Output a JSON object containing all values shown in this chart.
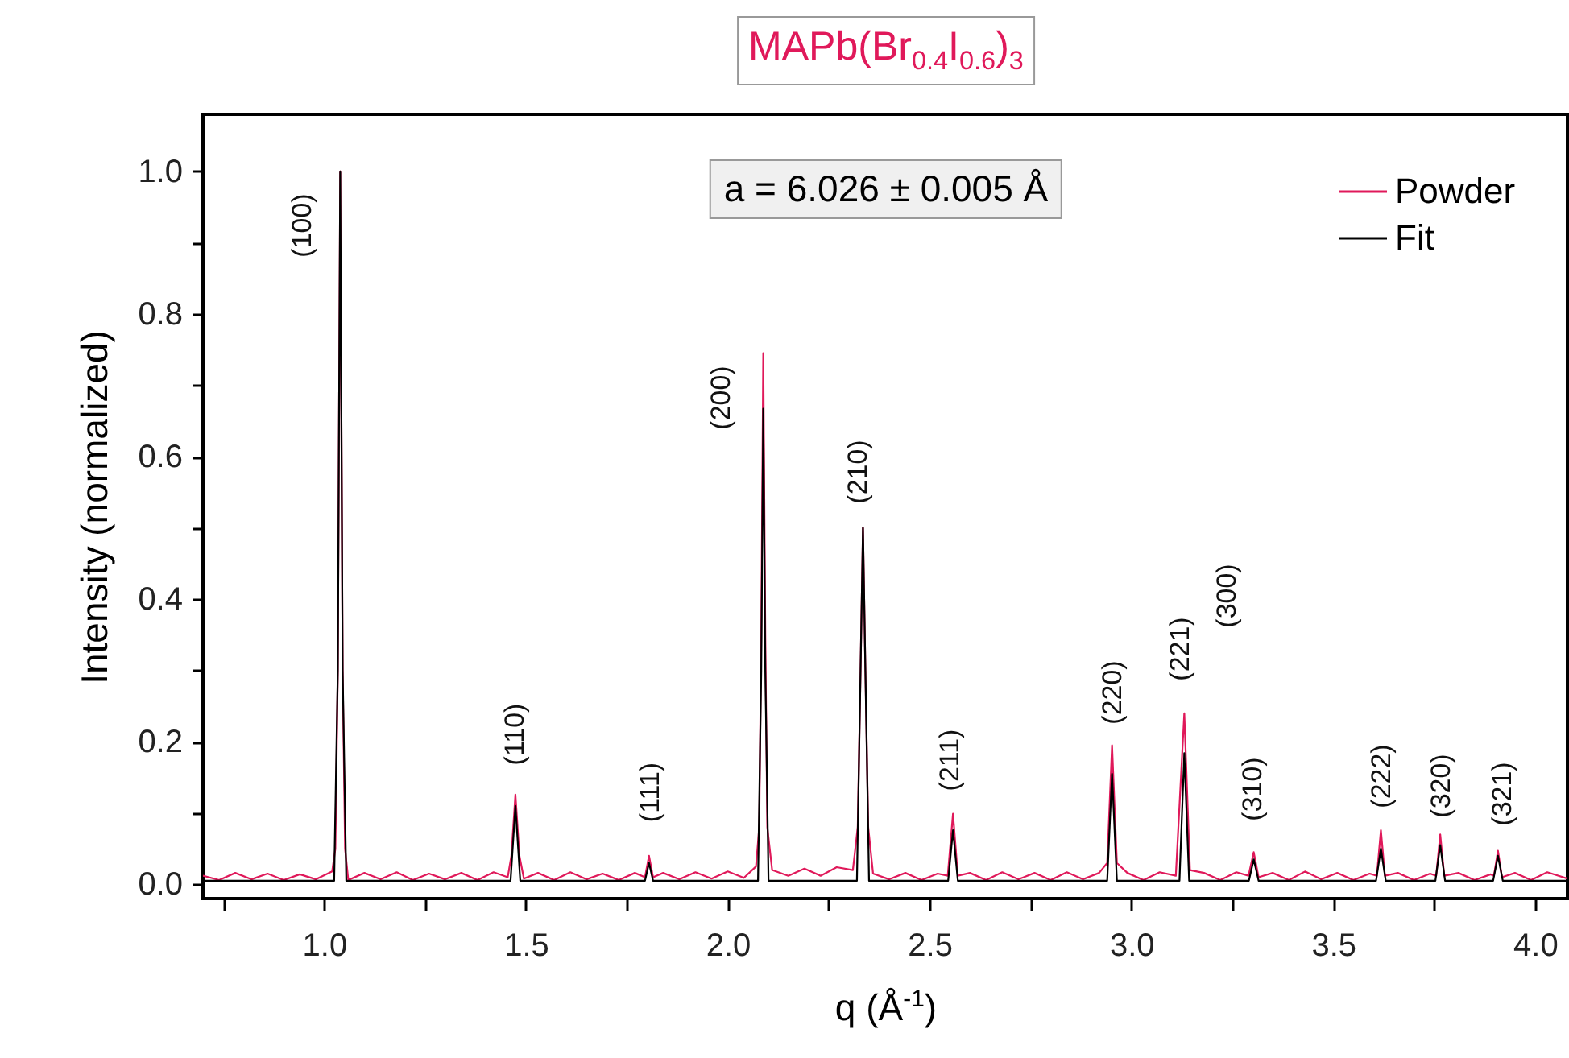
{
  "chart_data": {
    "type": "line",
    "title": "MAPb(Br$_{0.4}$I$_{0.6}$)$_{3}$",
    "xlabel": "q (Å$^{-1}$)",
    "ylabel": "Intensity (normalized)",
    "legend": "top right",
    "xlim": [
      0.7,
      4.08
    ],
    "ylim": [
      -0.02,
      1.08
    ],
    "xticks": [
      {
        "value": 0.75,
        "label": null
      },
      {
        "value": 1,
        "label": "1.0"
      },
      {
        "value": 1.25,
        "label": null
      },
      {
        "value": 1.5,
        "label": "1.5"
      },
      {
        "value": 1.75,
        "label": null
      },
      {
        "value": 2,
        "label": "2.0"
      },
      {
        "value": 2.25,
        "label": null
      },
      {
        "value": 2.5,
        "label": "2.5"
      },
      {
        "value": 2.75,
        "label": null
      },
      {
        "value": 3,
        "label": "3.0"
      },
      {
        "value": 3.25,
        "label": null
      },
      {
        "value": 3.5,
        "label": "3.5"
      },
      {
        "value": 3.75,
        "label": null
      },
      {
        "value": 4,
        "label": "4.0"
      }
    ],
    "yticks": [
      {
        "value": 0,
        "label": "0.0"
      },
      {
        "value": 0.1,
        "label": null
      },
      {
        "value": 0.2,
        "label": "0.2"
      },
      {
        "value": 0.3,
        "label": null
      },
      {
        "value": 0.4,
        "label": "0.4"
      },
      {
        "value": 0.5,
        "label": null
      },
      {
        "value": 0.6,
        "label": "0.6"
      },
      {
        "value": 0.7,
        "label": null
      },
      {
        "value": 0.8,
        "label": "0.8"
      },
      {
        "value": 0.9,
        "label": null
      },
      {
        "value": 1,
        "label": "1.0"
      }
    ],
    "series": [
      {
        "name": "Powder",
        "color": "#e0195a",
        "x": [
          0.7,
          0.74,
          0.78,
          0.82,
          0.86,
          0.9,
          0.94,
          0.98,
          1.02,
          1.028,
          1.034,
          1.04,
          1.046,
          1.052,
          1.06,
          1.1,
          1.14,
          1.18,
          1.22,
          1.26,
          1.3,
          1.34,
          1.38,
          1.42,
          1.455,
          1.464,
          1.474,
          1.484,
          1.495,
          1.53,
          1.57,
          1.61,
          1.65,
          1.69,
          1.73,
          1.77,
          1.795,
          1.805,
          1.815,
          1.84,
          1.88,
          1.92,
          1.96,
          2.0,
          2.04,
          2.07,
          2.078,
          2.083,
          2.088,
          2.093,
          2.098,
          2.11,
          2.15,
          2.19,
          2.23,
          2.27,
          2.31,
          2.322,
          2.329,
          2.335,
          2.341,
          2.348,
          2.36,
          2.4,
          2.44,
          2.48,
          2.52,
          2.545,
          2.558,
          2.57,
          2.6,
          2.64,
          2.68,
          2.72,
          2.76,
          2.8,
          2.84,
          2.88,
          2.92,
          2.94,
          2.952,
          2.964,
          2.99,
          3.03,
          3.07,
          3.11,
          3.131,
          3.145,
          3.18,
          3.22,
          3.26,
          3.29,
          3.303,
          3.315,
          3.35,
          3.39,
          3.43,
          3.47,
          3.51,
          3.55,
          3.59,
          3.608,
          3.618,
          3.628,
          3.66,
          3.7,
          3.74,
          3.755,
          3.765,
          3.775,
          3.81,
          3.85,
          3.89,
          3.898,
          3.908,
          3.918,
          3.95,
          3.99,
          4.03,
          4.08
        ],
        "values": [
          0.012,
          0.006,
          0.016,
          0.007,
          0.015,
          0.006,
          0.014,
          0.007,
          0.018,
          0.05,
          0.3,
          1.0,
          0.3,
          0.05,
          0.006,
          0.016,
          0.007,
          0.017,
          0.006,
          0.015,
          0.007,
          0.016,
          0.006,
          0.017,
          0.01,
          0.04,
          0.126,
          0.04,
          0.008,
          0.016,
          0.006,
          0.017,
          0.007,
          0.015,
          0.006,
          0.016,
          0.01,
          0.04,
          0.01,
          0.016,
          0.007,
          0.017,
          0.008,
          0.018,
          0.009,
          0.025,
          0.08,
          0.35,
          0.745,
          0.35,
          0.08,
          0.02,
          0.012,
          0.022,
          0.012,
          0.024,
          0.02,
          0.08,
          0.3,
          0.5,
          0.3,
          0.08,
          0.015,
          0.007,
          0.016,
          0.006,
          0.015,
          0.012,
          0.099,
          0.012,
          0.016,
          0.006,
          0.017,
          0.007,
          0.016,
          0.006,
          0.017,
          0.007,
          0.016,
          0.03,
          0.195,
          0.03,
          0.016,
          0.006,
          0.017,
          0.012,
          0.24,
          0.02,
          0.016,
          0.006,
          0.017,
          0.012,
          0.045,
          0.01,
          0.016,
          0.006,
          0.018,
          0.007,
          0.016,
          0.006,
          0.015,
          0.012,
          0.076,
          0.012,
          0.016,
          0.006,
          0.015,
          0.012,
          0.07,
          0.012,
          0.016,
          0.006,
          0.014,
          0.012,
          0.047,
          0.01,
          0.016,
          0.006,
          0.017,
          0.008
        ]
      },
      {
        "name": "Fit",
        "color": "#000000",
        "x": [
          0.7,
          1.025,
          1.034,
          1.04,
          1.046,
          1.055,
          1.462,
          1.474,
          1.486,
          1.795,
          1.805,
          1.815,
          2.075,
          2.083,
          2.088,
          2.093,
          2.101,
          2.32,
          2.329,
          2.335,
          2.341,
          2.35,
          2.546,
          2.558,
          2.57,
          2.94,
          2.952,
          2.964,
          3.119,
          3.131,
          3.143,
          3.291,
          3.303,
          3.315,
          3.606,
          3.618,
          3.63,
          3.753,
          3.765,
          3.777,
          3.896,
          3.908,
          3.92,
          4.08
        ],
        "values": [
          0.005,
          0.005,
          0.3,
          1.0,
          0.3,
          0.005,
          0.005,
          0.11,
          0.005,
          0.005,
          0.03,
          0.005,
          0.005,
          0.3,
          0.667,
          0.3,
          0.005,
          0.005,
          0.3,
          0.5,
          0.3,
          0.005,
          0.005,
          0.076,
          0.005,
          0.005,
          0.155,
          0.005,
          0.005,
          0.184,
          0.005,
          0.005,
          0.035,
          0.005,
          0.005,
          0.05,
          0.005,
          0.005,
          0.055,
          0.005,
          0.005,
          0.04,
          0.005,
          0.005
        ]
      }
    ],
    "annotations": [
      "a =  6.026 ± 0.005 Å",
      "(100)",
      "(110)",
      "(111)",
      "(200)",
      "(210)",
      "(211)",
      "(220)",
      "(221)",
      "(300)",
      "(310)",
      "(222)",
      "(320)",
      "(321)"
    ]
  }
}
